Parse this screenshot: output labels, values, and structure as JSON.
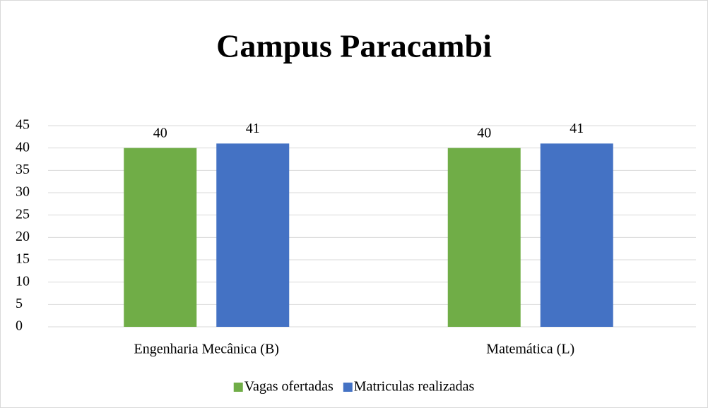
{
  "chart_data": {
    "type": "bar",
    "title": "Campus Paracambi",
    "categories": [
      "Engenharia Mecânica (B)",
      "Matemática (L)"
    ],
    "series": [
      {
        "name": "Vagas ofertadas",
        "color": "#70ad47",
        "values": [
          40,
          40
        ]
      },
      {
        "name": "Matriculas realizadas",
        "color": "#4472c4",
        "values": [
          41,
          41
        ]
      }
    ],
    "ylim": [
      0,
      45
    ],
    "yticks": [
      0,
      5,
      10,
      15,
      20,
      25,
      30,
      35,
      40,
      45
    ],
    "grid": true,
    "legend": "bottom"
  }
}
